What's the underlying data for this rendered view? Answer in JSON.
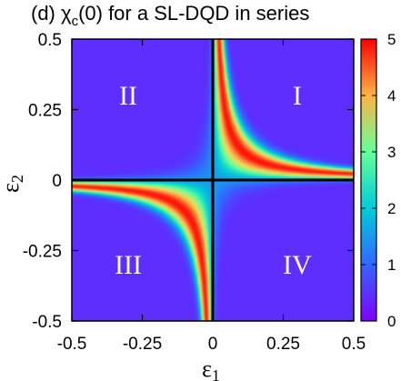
{
  "chart_data": {
    "type": "heatmap",
    "title": "(d) χ_c(0) for a SL-DQD in series",
    "title_parts": {
      "prefix": "(d) χ",
      "sub": "c",
      "suffix": "(0) for a SL-DQD in series"
    },
    "xlabel": "ε_1",
    "ylabel": "ε_2",
    "xlabel_parts": {
      "main": "ε",
      "sub": "1"
    },
    "ylabel_parts": {
      "main": "ε",
      "sub": "2"
    },
    "xlim": [
      -0.5,
      0.5
    ],
    "ylim": [
      -0.5,
      0.5
    ],
    "xticks": [
      "-0.5",
      "-0.25",
      "0",
      "0.25",
      "0.5"
    ],
    "xtick_values": [
      -0.5,
      -0.25,
      0,
      0.25,
      0.5
    ],
    "yticks": [
      "0.5",
      "0.25",
      "0",
      "-0.25",
      "-0.5"
    ],
    "ytick_values": [
      0.5,
      0.25,
      0,
      -0.25,
      -0.5
    ],
    "colorbar": {
      "range": [
        0,
        5
      ],
      "ticks": [
        "5",
        "4",
        "3",
        "2",
        "1",
        "0"
      ],
      "tick_values": [
        5,
        4,
        3,
        2,
        1,
        0
      ],
      "colormap": "rainbow (purple → blue → cyan → green → yellow → orange → red)"
    },
    "quadrant_labels": [
      {
        "text": "I",
        "x": 0.3,
        "y": 0.3
      },
      {
        "text": "II",
        "x": -0.3,
        "y": 0.3
      },
      {
        "text": "III",
        "x": -0.3,
        "y": -0.3
      },
      {
        "text": "IV",
        "x": 0.3,
        "y": -0.3
      }
    ],
    "feature": "maximum along hyperbola ε1·ε2 ≈ 0.01 in quadrants I and III (peak ≈ 4.9), low ≈ 0.4 elsewhere; black lines at ε1 = 0 and ε2 = 0",
    "grid": false,
    "colors": {
      "low": "#8000ff",
      "high": "#ff0000",
      "zero_lines": "#000000"
    }
  }
}
